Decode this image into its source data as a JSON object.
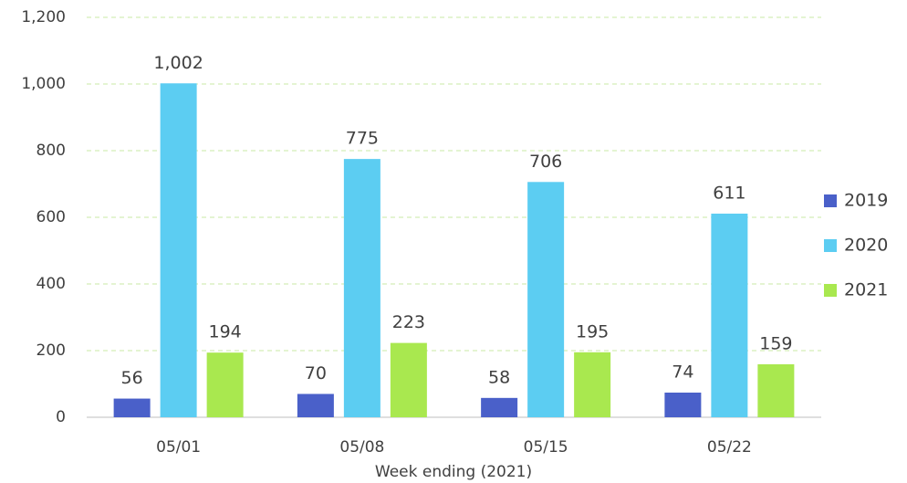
{
  "chart_data": {
    "type": "bar",
    "x_label": "Week ending (2021)",
    "categories": [
      "05/01",
      "05/08",
      "05/15",
      "05/22"
    ],
    "series": [
      {
        "name": "2019",
        "color": "#4a60c9",
        "values": [
          56,
          70,
          58,
          74
        ]
      },
      {
        "name": "2020",
        "color": "#5ccdf2",
        "values": [
          1002,
          775,
          706,
          611
        ],
        "value_labels": [
          "1,002",
          "775",
          "706",
          "611"
        ]
      },
      {
        "name": "2021",
        "color": "#a9e84f",
        "values": [
          194,
          223,
          195,
          159
        ]
      }
    ],
    "ylim": [
      0,
      1200
    ],
    "yticks": [
      0,
      200,
      400,
      600,
      800,
      {
        "value": 1000,
        "label": "1,000"
      },
      {
        "value": 1200,
        "label": "1,200"
      }
    ],
    "grid": true,
    "legend": "right"
  }
}
